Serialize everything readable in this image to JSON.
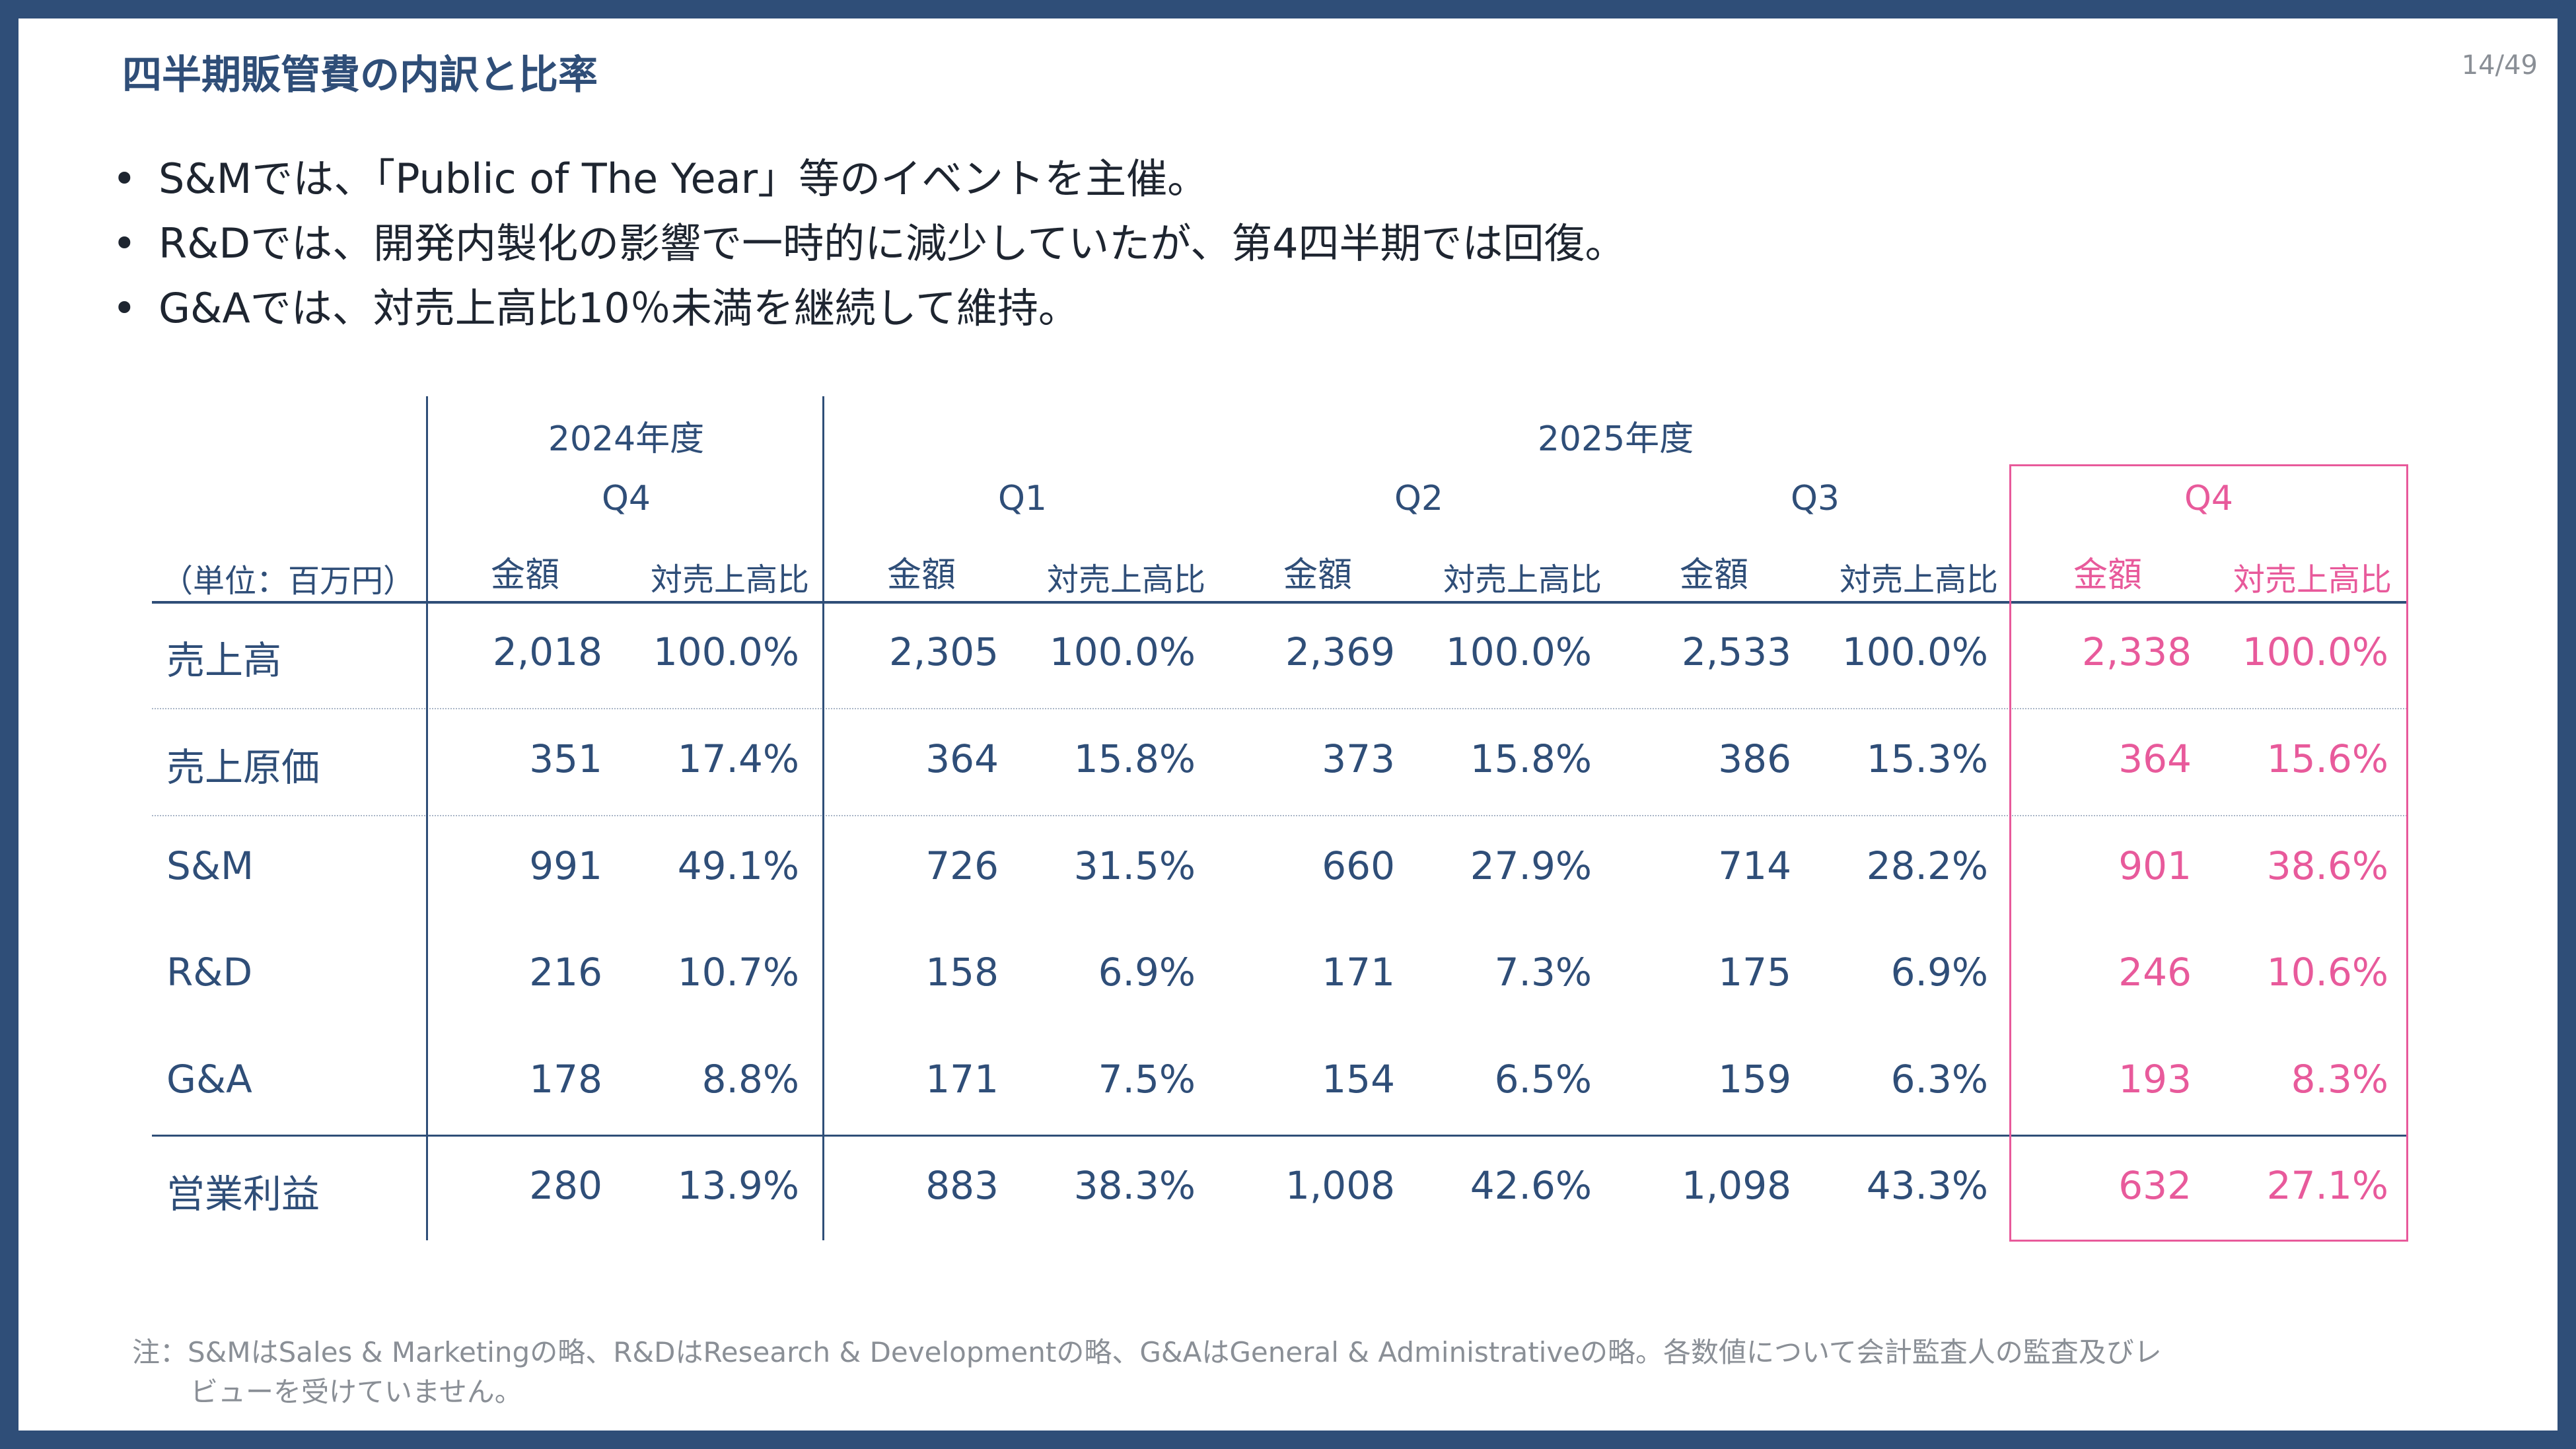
{
  "header": {
    "title": "四半期販管費の内訳と比率",
    "page": "14/49"
  },
  "bullets": [
    "S&Mでは、「Public of The Year」等のイベントを主催。",
    "R&Dでは、開発内製化の影響で一時的に減少していたが、第4四半期では回復。",
    "G&Aでは、対売上高比10％未満を継続して維持。"
  ],
  "table": {
    "unit_label": "（単位：百万円）",
    "year_2024": "2024年度",
    "year_2025": "2025年度",
    "quarters": [
      "Q4",
      "Q1",
      "Q2",
      "Q3",
      "Q4"
    ],
    "amount_label": "金額",
    "ratio_label": "対売上高比",
    "highlight_color": "#e85a9b",
    "text_color": "#2f4e78",
    "rows": [
      {
        "label": "売上高",
        "values": [
          "2,018",
          "100.0%",
          "2,305",
          "100.0%",
          "2,369",
          "100.0%",
          "2,533",
          "100.0%",
          "2,338",
          "100.0%"
        ]
      },
      {
        "label": "売上原価",
        "values": [
          "351",
          "17.4%",
          "364",
          "15.8%",
          "373",
          "15.8%",
          "386",
          "15.3%",
          "364",
          "15.6%"
        ]
      },
      {
        "label": "S&M",
        "values": [
          "991",
          "49.1%",
          "726",
          "31.5%",
          "660",
          "27.9%",
          "714",
          "28.2%",
          "901",
          "38.6%"
        ]
      },
      {
        "label": "R&D",
        "values": [
          "216",
          "10.7%",
          "158",
          "6.9%",
          "171",
          "7.3%",
          "175",
          "6.9%",
          "246",
          "10.6%"
        ]
      },
      {
        "label": "G&A",
        "values": [
          "178",
          "8.8%",
          "171",
          "7.5%",
          "154",
          "6.5%",
          "159",
          "6.3%",
          "193",
          "8.3%"
        ]
      },
      {
        "label": "営業利益",
        "values": [
          "280",
          "13.9%",
          "883",
          "38.3%",
          "1,008",
          "42.6%",
          "1,098",
          "43.3%",
          "632",
          "27.1%"
        ]
      }
    ]
  },
  "note": {
    "line1": "注：S&MはSales & Marketingの略、R&DはResearch & Developmentの略、G&AはGeneral & Administrativeの略。各数値について会計監査人の監査及びレ",
    "line2": "ビューを受けていません。"
  }
}
